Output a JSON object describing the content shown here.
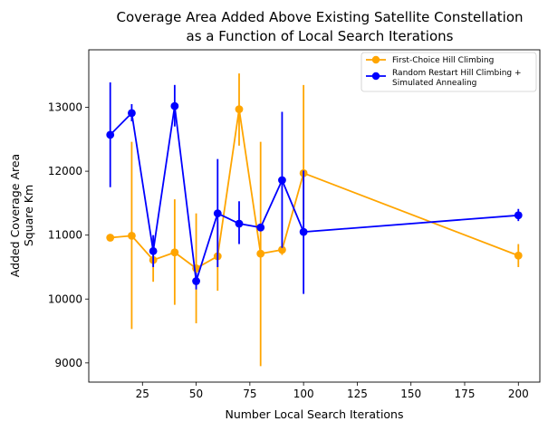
{
  "chart_data": {
    "type": "line",
    "title_lines": [
      "Coverage Area Added Above Existing Satellite Constellation",
      "as a Function of Local Search Iterations"
    ],
    "xlabel": "Number Local Search Iterations",
    "ylabel_lines": [
      "Added Coverage Area",
      "Square Km"
    ],
    "xlim": [
      0,
      210
    ],
    "ylim": [
      8700,
      13900
    ],
    "xticks": [
      25,
      50,
      75,
      100,
      125,
      150,
      175,
      200
    ],
    "yticks": [
      9000,
      10000,
      11000,
      12000,
      13000
    ],
    "legend_position": "top-right",
    "series": [
      {
        "name": "First-Choice Hill Climbing",
        "color": "#ffa500",
        "x": [
          10,
          20,
          30,
          40,
          50,
          60,
          70,
          80,
          90,
          100,
          200
        ],
        "y": [
          10960,
          10990,
          10610,
          10730,
          10480,
          10670,
          12970,
          10710,
          10770,
          11970,
          10680
        ],
        "err_low": [
          10960,
          9530,
          10270,
          9910,
          9620,
          10130,
          12400,
          8950,
          10690,
          11250,
          10500
        ],
        "err_high": [
          10960,
          12460,
          10950,
          11560,
          11340,
          11210,
          13530,
          12460,
          10850,
          13350,
          10860
        ]
      },
      {
        "name_lines": [
          "Random Restart Hill Climbing +",
          "Simulated Annealing"
        ],
        "color": "#0000ff",
        "x": [
          10,
          20,
          30,
          40,
          50,
          60,
          70,
          80,
          90,
          100,
          200
        ],
        "y": [
          12570,
          12910,
          10750,
          13020,
          10280,
          11340,
          11180,
          11120,
          11860,
          11050,
          11310
        ],
        "err_low": [
          11750,
          12780,
          10500,
          12700,
          10150,
          10500,
          10860,
          11070,
          10800,
          10080,
          11220
        ],
        "err_high": [
          13390,
          13050,
          11000,
          13350,
          10410,
          12190,
          11530,
          11170,
          12930,
          12010,
          11410
        ]
      }
    ]
  }
}
